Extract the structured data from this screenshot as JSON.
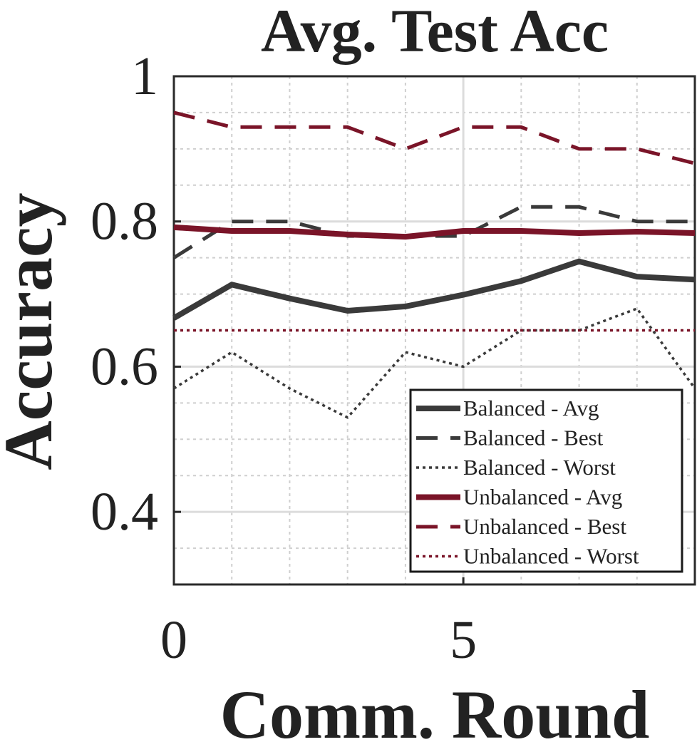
{
  "chart_data": {
    "type": "line",
    "title": "Avg. Test Acc",
    "xlabel": "Comm. Round",
    "ylabel": "Accuracy",
    "xlim": [
      0,
      9
    ],
    "ylim": [
      0.3,
      1.0
    ],
    "xticks": [
      0,
      5
    ],
    "xtick_labels": [
      "0",
      "5"
    ],
    "yticks": [
      0.4,
      0.6,
      0.8,
      1.0
    ],
    "ytick_labels": [
      "0.4",
      "0.6",
      "0.8",
      "1"
    ],
    "grid": true,
    "legend_position": "bottom-right",
    "x": [
      0,
      1,
      2,
      3,
      4,
      5,
      6,
      7,
      8,
      9
    ],
    "series": [
      {
        "name": "Balanced - Avg",
        "color": "#3a3a3a",
        "style": "solid",
        "weight": "thick",
        "values": [
          0.667,
          0.713,
          0.694,
          0.677,
          0.683,
          0.699,
          0.718,
          0.745,
          0.724,
          0.72
        ]
      },
      {
        "name": "Balanced - Best",
        "color": "#3a3a3a",
        "style": "dashed",
        "weight": "medium",
        "values": [
          0.75,
          0.8,
          0.8,
          0.78,
          0.78,
          0.78,
          0.82,
          0.82,
          0.8,
          0.8
        ]
      },
      {
        "name": "Balanced - Worst",
        "color": "#3a3a3a",
        "style": "dotted",
        "weight": "thin",
        "values": [
          0.57,
          0.62,
          0.57,
          0.53,
          0.62,
          0.6,
          0.65,
          0.65,
          0.68,
          0.57
        ]
      },
      {
        "name": "Unbalanced - Avg",
        "color": "#7a1428",
        "style": "solid",
        "weight": "thick",
        "values": [
          0.792,
          0.787,
          0.787,
          0.782,
          0.779,
          0.787,
          0.787,
          0.784,
          0.786,
          0.784
        ]
      },
      {
        "name": "Unbalanced - Best",
        "color": "#7a1428",
        "style": "dashed",
        "weight": "medium",
        "values": [
          0.95,
          0.93,
          0.93,
          0.93,
          0.9,
          0.93,
          0.93,
          0.9,
          0.9,
          0.88
        ]
      },
      {
        "name": "Unbalanced - Worst",
        "color": "#7a1428",
        "style": "dotted",
        "weight": "thin",
        "values": [
          0.65,
          0.65,
          0.65,
          0.65,
          0.65,
          0.65,
          0.65,
          0.65,
          0.65,
          0.65
        ]
      }
    ]
  }
}
